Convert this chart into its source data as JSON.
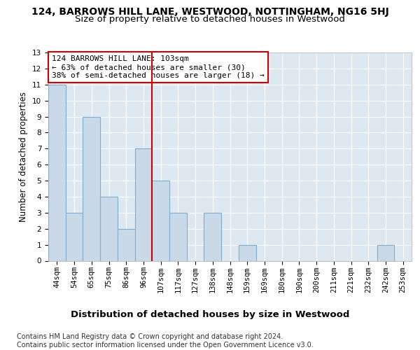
{
  "title_line1": "124, BARROWS HILL LANE, WESTWOOD, NOTTINGHAM, NG16 5HJ",
  "title_line2": "Size of property relative to detached houses in Westwood",
  "xlabel": "Distribution of detached houses by size in Westwood",
  "ylabel": "Number of detached properties",
  "categories": [
    "44sqm",
    "54sqm",
    "65sqm",
    "75sqm",
    "86sqm",
    "96sqm",
    "107sqm",
    "117sqm",
    "127sqm",
    "138sqm",
    "148sqm",
    "159sqm",
    "169sqm",
    "180sqm",
    "190sqm",
    "200sqm",
    "211sqm",
    "221sqm",
    "232sqm",
    "242sqm",
    "253sqm"
  ],
  "values": [
    11,
    3,
    9,
    4,
    2,
    7,
    5,
    3,
    0,
    3,
    0,
    1,
    0,
    0,
    0,
    0,
    0,
    0,
    0,
    1,
    0
  ],
  "bar_color": "#c9d9e8",
  "bar_edgecolor": "#7fafd4",
  "vline_idx": 6,
  "vline_color": "#cc0000",
  "annotation_text": "124 BARROWS HILL LANE: 103sqm\n← 63% of detached houses are smaller (30)\n38% of semi-detached houses are larger (18) →",
  "annotation_box_edgecolor": "#cc0000",
  "ylim": [
    0,
    13
  ],
  "yticks": [
    0,
    1,
    2,
    3,
    4,
    5,
    6,
    7,
    8,
    9,
    10,
    11,
    12,
    13
  ],
  "footer_text": "Contains HM Land Registry data © Crown copyright and database right 2024.\nContains public sector information licensed under the Open Government Licence v3.0.",
  "bg_color": "#dde8f0",
  "grid_color": "#ffffff",
  "title_fontsize": 10,
  "subtitle_fontsize": 9.5,
  "xlabel_fontsize": 9.5,
  "ylabel_fontsize": 8.5,
  "tick_fontsize": 7.5,
  "annotation_fontsize": 8,
  "footer_fontsize": 7
}
